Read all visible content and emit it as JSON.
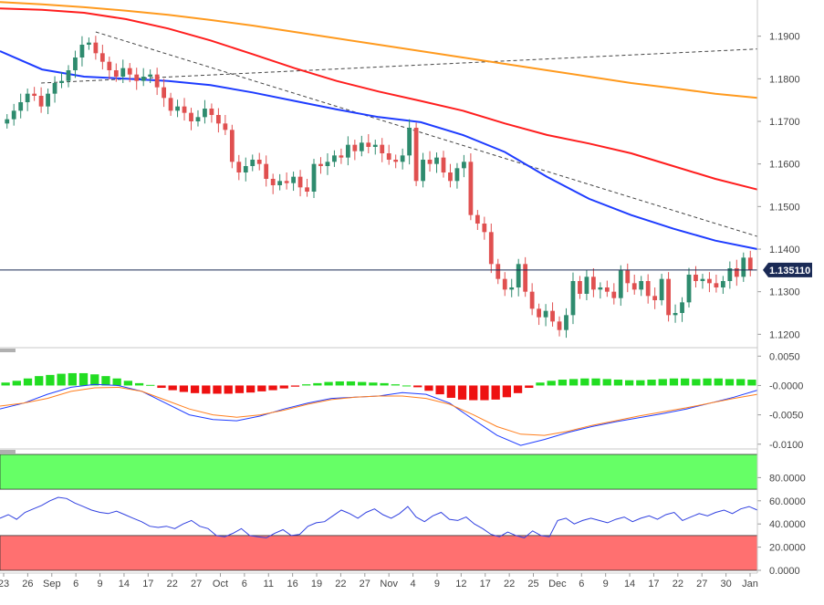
{
  "chart_data": [
    {
      "type": "candlestick",
      "panel": "price",
      "price_tag": "1.135110",
      "y_ticks": [
        "1.1900",
        "1.1800",
        "1.1700",
        "1.1600",
        "1.1500",
        "1.1400",
        "1.1300",
        "1.1200"
      ],
      "ylim": [
        1.1175,
        1.1985
      ],
      "current_price": 1.13511,
      "x_tick_labels": [
        "23",
        "26",
        "Sep",
        "6",
        "9",
        "14",
        "17",
        "22",
        "27",
        "Oct",
        "6",
        "11",
        "16",
        "19",
        "22",
        "27",
        "Nov",
        "4",
        "9",
        "12",
        "17",
        "22",
        "25",
        "Dec",
        "6",
        "9",
        "14",
        "17",
        "22",
        "27",
        "30",
        "Jan"
      ],
      "candles_close": [
        1.1705,
        1.1725,
        1.1745,
        1.1765,
        1.176,
        1.1735,
        1.1765,
        1.179,
        1.1795,
        1.182,
        1.185,
        1.188,
        1.1885,
        1.186,
        1.184,
        1.182,
        1.1805,
        1.1825,
        1.181,
        1.1795,
        1.1805,
        1.181,
        1.178,
        1.1755,
        1.1725,
        1.1735,
        1.172,
        1.17,
        1.171,
        1.173,
        1.1715,
        1.1695,
        1.168,
        1.1605,
        1.158,
        1.1595,
        1.161,
        1.16,
        1.1565,
        1.155,
        1.156,
        1.1555,
        1.157,
        1.1545,
        1.1535,
        1.16,
        1.1595,
        1.1605,
        1.162,
        1.1615,
        1.1645,
        1.163,
        1.165,
        1.164,
        1.1645,
        1.1625,
        1.161,
        1.1605,
        1.162,
        1.1685,
        1.156,
        1.161,
        1.16,
        1.1615,
        1.158,
        1.156,
        1.159,
        1.1605,
        1.148,
        1.146,
        1.144,
        1.1365,
        1.133,
        1.1305,
        1.131,
        1.1365,
        1.13,
        1.126,
        1.124,
        1.1255,
        1.123,
        1.121,
        1.1245,
        1.1325,
        1.1295,
        1.1335,
        1.1305,
        1.131,
        1.13,
        1.1285,
        1.135,
        1.132,
        1.1305,
        1.1325,
        1.129,
        1.128,
        1.133,
        1.1245,
        1.125,
        1.1275,
        1.134,
        1.1325,
        1.133,
        1.132,
        1.131,
        1.1325,
        1.1355,
        1.1335,
        1.138,
        1.1351
      ],
      "series": [
        {
          "name": "",
          "color": "#ff9a1e",
          "values": [
            1.198,
            1.1975,
            1.1968,
            1.196,
            1.195,
            1.1938,
            1.1925,
            1.191,
            1.1895,
            1.188,
            1.1865,
            1.185,
            1.1835,
            1.182,
            1.1805,
            1.179,
            1.1778,
            1.1765,
            1.1755
          ]
        },
        {
          "name": "",
          "color": "#ff1e1e",
          "values": [
            1.1965,
            1.1962,
            1.1955,
            1.194,
            1.1918,
            1.189,
            1.1858,
            1.1825,
            1.1795,
            1.177,
            1.1748,
            1.1725,
            1.1695,
            1.1668,
            1.1648,
            1.1625,
            1.1595,
            1.1565,
            1.154
          ]
        },
        {
          "name": "",
          "color": "#1e3cff",
          "values": [
            1.1865,
            1.1822,
            1.1805,
            1.18,
            1.1795,
            1.1785,
            1.1768,
            1.1748,
            1.1728,
            1.171,
            1.1698,
            1.1668,
            1.1628,
            1.157,
            1.1518,
            1.148,
            1.1448,
            1.142,
            1.14
          ]
        }
      ],
      "trendlines": [
        {
          "style": "dashed",
          "from": [
            5,
            1.179
          ],
          "to": [
            110,
            1.187
          ]
        },
        {
          "style": "dashed",
          "from": [
            13,
            1.191
          ],
          "to": [
            110,
            1.143
          ]
        }
      ]
    },
    {
      "type": "histogram+line",
      "panel": "macd",
      "y_ticks": [
        "0.0050",
        "-0.0000",
        "-0.0050",
        "-0.0100"
      ],
      "ylim": [
        -0.0105,
        0.0052
      ],
      "histogram": [
        0.0005,
        0.0008,
        0.0012,
        0.0016,
        0.0018,
        0.002,
        0.0021,
        0.0021,
        0.0019,
        0.0016,
        0.0012,
        0.0008,
        0.0004,
        0.0001,
        -0.0004,
        -0.0008,
        -0.0011,
        -0.0013,
        -0.0014,
        -0.0014,
        -0.0014,
        -0.0013,
        -0.0012,
        -0.001,
        -0.0008,
        -0.0005,
        -0.0002,
        0.0002,
        0.0004,
        0.0006,
        0.0007,
        0.0007,
        0.0006,
        0.0005,
        0.0004,
        0.0002,
        0,
        -0.0003,
        -0.0009,
        -0.0015,
        -0.0021,
        -0.0024,
        -0.0025,
        -0.0025,
        -0.0024,
        -0.002,
        -0.0013,
        -0.0004,
        0.0005,
        0.0008,
        0.001,
        0.0011,
        0.0012,
        0.0012,
        0.0011,
        0.001,
        0.0009,
        0.0009,
        0.001,
        0.0011,
        0.0012,
        0.0012,
        0.0011,
        0.0012,
        0.0012,
        0.0011,
        0.0011,
        0.001
      ],
      "series": [
        {
          "name": "",
          "color": "#1e3cff",
          "values": [
            -0.004,
            -0.003,
            -0.0015,
            -0.0003,
            0.0002,
            0.0,
            -0.001,
            -0.003,
            -0.005,
            -0.0058,
            -0.006,
            -0.0052,
            -0.004,
            -0.003,
            -0.0022,
            -0.002,
            -0.0018,
            -0.0012,
            -0.0015,
            -0.003,
            -0.0058,
            -0.0085,
            -0.0102,
            -0.0092,
            -0.008,
            -0.007,
            -0.0062,
            -0.0055,
            -0.0048,
            -0.004,
            -0.003,
            -0.002,
            -0.0008
          ]
        },
        {
          "name": "",
          "color": "#ff7f1e",
          "values": [
            -0.0035,
            -0.003,
            -0.0022,
            -0.001,
            -0.0004,
            -0.0003,
            -0.001,
            -0.0025,
            -0.004,
            -0.005,
            -0.0054,
            -0.005,
            -0.0042,
            -0.0032,
            -0.0024,
            -0.002,
            -0.0018,
            -0.0018,
            -0.0022,
            -0.0032,
            -0.005,
            -0.007,
            -0.0083,
            -0.0085,
            -0.0078,
            -0.0068,
            -0.006,
            -0.0052,
            -0.0045,
            -0.0038,
            -0.003,
            -0.0022,
            -0.0015
          ]
        }
      ]
    },
    {
      "type": "line",
      "panel": "rsi",
      "y_ticks": [
        "80.0000",
        "60.0000",
        "40.0000",
        "20.0000",
        "0.0000"
      ],
      "ylim": [
        0,
        100
      ],
      "zones": [
        {
          "from": 70,
          "to": 100,
          "color": "#66ff66"
        },
        {
          "from": 0,
          "to": 30,
          "color": "#ff7070"
        }
      ],
      "series": [
        {
          "name": "",
          "color": "#3040e0",
          "values": [
            45,
            48,
            44,
            50,
            53,
            56,
            60,
            63,
            62,
            58,
            55,
            52,
            50,
            49,
            51,
            48,
            45,
            42,
            38,
            37,
            38,
            36,
            40,
            43,
            38,
            36,
            30,
            29,
            32,
            36,
            30,
            29,
            28,
            32,
            35,
            30,
            31,
            38,
            41,
            42,
            47,
            52,
            49,
            45,
            50,
            53,
            48,
            45,
            49,
            55,
            46,
            42,
            47,
            50,
            44,
            43,
            46,
            40,
            36,
            31,
            29,
            33,
            30,
            28,
            34,
            30,
            29,
            43,
            45,
            40,
            43,
            45,
            43,
            41,
            44,
            46,
            42,
            45,
            47,
            44,
            48,
            50,
            43,
            46,
            49,
            47,
            50,
            52,
            49,
            53,
            55,
            52
          ]
        }
      ]
    }
  ]
}
